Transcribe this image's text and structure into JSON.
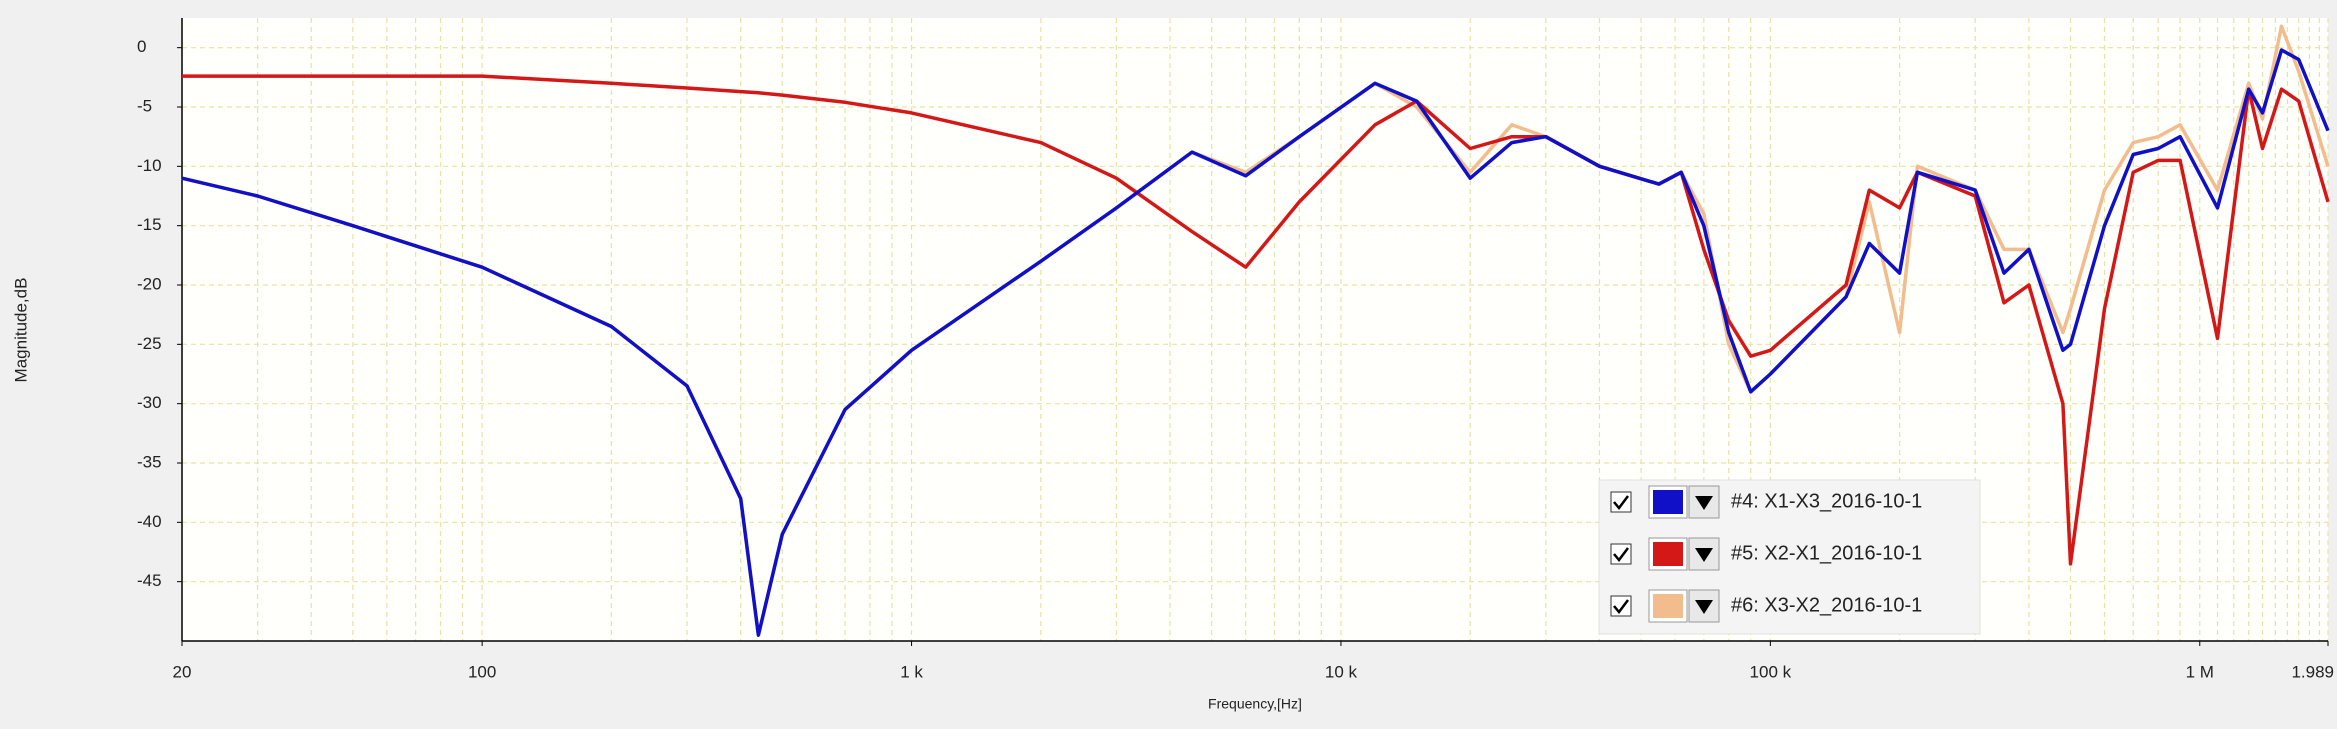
{
  "chart_data": {
    "type": "line",
    "x_label": "Frequency,[Hz]",
    "y_label": "Magnitude,dB",
    "log_x": true,
    "grid": true,
    "xlim": [
      20,
      1989000
    ],
    "ylim": [
      -50,
      2.5
    ],
    "xticks": [
      20,
      100,
      {
        "value": 1000,
        "label": "1 k"
      },
      {
        "value": 10000,
        "label": "10 k"
      },
      {
        "value": 100000,
        "label": "100 k"
      },
      {
        "value": 1000000,
        "label": "1 M"
      },
      {
        "value": 1989000,
        "label": "1.989"
      }
    ],
    "xminorticks": [
      30,
      40,
      50,
      60,
      70,
      80,
      90,
      200,
      300,
      400,
      500,
      600,
      700,
      800,
      900,
      2000,
      3000,
      4000,
      5000,
      6000,
      7000,
      8000,
      9000,
      20000,
      30000,
      40000,
      50000,
      60000,
      70000,
      80000,
      90000,
      200000,
      300000,
      400000,
      500000,
      600000,
      700000,
      800000,
      900000,
      1100000,
      1200000,
      1300000,
      1400000,
      1500000,
      1600000,
      1700000,
      1800000,
      1900000
    ],
    "yticks": [
      0,
      -5,
      -10,
      -15,
      -20,
      -25,
      -30,
      -35,
      -40,
      -45
    ],
    "legend": "bottom-right",
    "x": [
      20,
      30,
      50,
      100,
      200,
      300,
      400,
      440,
      500,
      700,
      1000,
      2000,
      3000,
      4500,
      6000,
      8000,
      12000,
      15000,
      20000,
      25000,
      30000,
      40000,
      55000,
      62000,
      70000,
      80000,
      90000,
      100000,
      150000,
      170000,
      200000,
      220000,
      300000,
      350000,
      400000,
      480000,
      500000,
      600000,
      700000,
      800000,
      900000,
      1100000,
      1300000,
      1400000,
      1550000,
      1700000,
      1989000
    ],
    "series": [
      {
        "name": "#4: X1-X3_2016-10-1",
        "color": "#1010c8",
        "values": [
          -11,
          -12.5,
          -15,
          -18.5,
          -23.5,
          -28.5,
          -38,
          -49.5,
          -41,
          -30.5,
          -25.5,
          -18,
          -13.5,
          -8.8,
          -10.8,
          -7.5,
          -3,
          -4.5,
          -11,
          -8,
          -7.5,
          -10,
          -11.5,
          -10.5,
          -15,
          -24,
          -29,
          -27.5,
          -21,
          -16.5,
          -19,
          -10.5,
          -12,
          -19,
          -17,
          -25.5,
          -25,
          -15,
          -9,
          -8.5,
          -7.5,
          -13.5,
          -3.5,
          -5.5,
          -0.2,
          -1,
          -7
        ]
      },
      {
        "name": "#5: X2-X1_2016-10-1",
        "color": "#d41818",
        "values": [
          -2.4,
          -2.4,
          -2.4,
          -2.4,
          -3,
          -3.4,
          -3.7,
          -3.8,
          -4,
          -4.6,
          -5.5,
          -8,
          -11,
          -15.5,
          -18.5,
          -13,
          -6.5,
          -4.5,
          -8.5,
          -7.5,
          -7.5,
          -10,
          -11.5,
          -10.5,
          -17,
          -23,
          -26,
          -25.5,
          -20,
          -12,
          -13.5,
          -10.5,
          -12.5,
          -21.5,
          -20,
          -30,
          -43.5,
          -22,
          -10.5,
          -9.5,
          -9.5,
          -24.5,
          -3.5,
          -8.5,
          -3.5,
          -4.5,
          -13
        ]
      },
      {
        "name": "#6: X3-X2_2016-10-1",
        "color": "#f2bc8c",
        "values": [
          -11,
          -12.5,
          -15,
          -18.5,
          -23.5,
          -28.5,
          -38,
          -49.5,
          -41,
          -30.5,
          -25.5,
          -18,
          -13.5,
          -8.8,
          -10.5,
          -7.5,
          -3,
          -5,
          -10.5,
          -6.5,
          -7.5,
          -10,
          -11.5,
          -10.5,
          -14,
          -25,
          -29,
          -27.5,
          -21,
          -13,
          -24,
          -10,
          -12,
          -17,
          -17,
          -24,
          -22,
          -12,
          -8,
          -7.5,
          -6.5,
          -12,
          -3,
          -6,
          1.8,
          -2,
          -10
        ]
      }
    ]
  }
}
